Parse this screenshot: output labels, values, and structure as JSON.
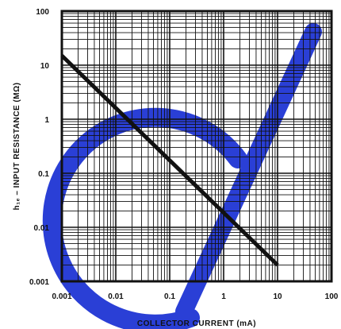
{
  "chart_data": {
    "type": "line",
    "title": "",
    "xlabel": "COLLECTOR CURRENT  (mA)",
    "ylabel": "h₁ₑ – INPUT RESISTANCE (MΩ)",
    "x_scale": "log",
    "y_scale": "log",
    "xlim": [
      0.001,
      100
    ],
    "ylim": [
      0.001,
      100
    ],
    "x_ticks": [
      "0.001",
      "0.01",
      "0.1",
      "1",
      "10",
      "100"
    ],
    "y_ticks": [
      "0.001",
      "0.01",
      "0.1",
      "1",
      "10",
      "100"
    ],
    "grid": true,
    "series": [
      {
        "values": [
          {
            "x": 0.001,
            "y": 15
          },
          {
            "x": 10,
            "y": 0.002
          }
        ]
      }
    ]
  },
  "decoration": {
    "watermark_color": "#2a3fd6"
  }
}
